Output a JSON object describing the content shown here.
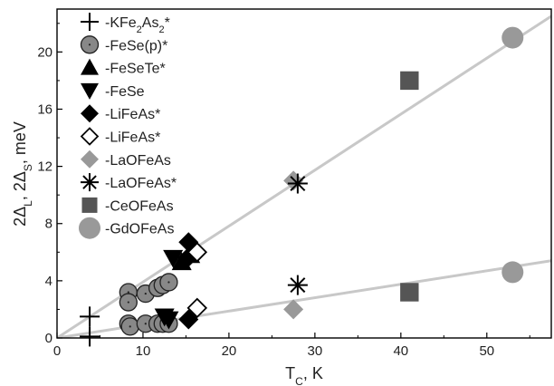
{
  "chart_data": {
    "type": "scatter",
    "xlabel": "T_C, K",
    "ylabel": "2Δ_L, 2Δ_S, meV",
    "xlim": [
      0,
      57.5
    ],
    "ylim": [
      0,
      23
    ],
    "xticks": [
      0,
      10,
      20,
      30,
      40,
      50
    ],
    "yticks": [
      0,
      4,
      8,
      12,
      16,
      20
    ],
    "grid": false,
    "legend_position": "top-left",
    "colors": {
      "fit_line": "#c8c8c8",
      "dark_gray": "#555555",
      "mid_gray": "#999999",
      "black": "#000000"
    },
    "fit_lines": [
      {
        "x": [
          0,
          57.5
        ],
        "y": [
          0,
          22.5
        ]
      },
      {
        "x": [
          0,
          57.5
        ],
        "y": [
          0,
          5.4
        ]
      }
    ],
    "series": [
      {
        "name": "-KFe2As2*",
        "legend": [
          "-KFe",
          "2",
          "As",
          "2",
          "*"
        ],
        "marker": "plus",
        "color": "#000000",
        "points": [
          [
            3.8,
            1.5
          ],
          [
            3.8,
            0.1
          ]
        ]
      },
      {
        "name": "-FeSe(p)*",
        "marker": "circle-dot",
        "color": "#888888",
        "points": [
          [
            8.3,
            3.2
          ],
          [
            8.3,
            2.5
          ],
          [
            10.3,
            3.1
          ],
          [
            11.7,
            3.5
          ],
          [
            12.3,
            3.7
          ],
          [
            13.0,
            3.9
          ],
          [
            8.3,
            1.0
          ],
          [
            8.5,
            0.8
          ],
          [
            10.3,
            1.0
          ],
          [
            11.7,
            1.0
          ],
          [
            12.3,
            1.0
          ],
          [
            13.0,
            1.0
          ]
        ]
      },
      {
        "name": "-FeSeTe*",
        "marker": "triangle-up",
        "color": "#000000",
        "points": [
          [
            14.5,
            5.3
          ],
          [
            15.5,
            5.8
          ]
        ]
      },
      {
        "name": "-FeSe",
        "marker": "triangle-down",
        "color": "#000000",
        "points": [
          [
            13.5,
            5.6
          ],
          [
            12.5,
            1.5
          ],
          [
            13.0,
            1.3
          ]
        ]
      },
      {
        "name": "-LiFeAs*",
        "marker": "diamond",
        "color": "#000000",
        "points": [
          [
            15.3,
            6.7
          ],
          [
            15.2,
            5.6
          ],
          [
            15.3,
            1.3
          ]
        ]
      },
      {
        "name": "-LiFeAs*",
        "marker": "diamond-open",
        "color": "#000000",
        "points": [
          [
            16.3,
            6.0
          ],
          [
            16.3,
            2.1
          ]
        ]
      },
      {
        "name": "-LaOFeAs",
        "marker": "diamond",
        "color": "#999999",
        "points": [
          [
            27.5,
            11.0
          ],
          [
            27.5,
            2.0
          ]
        ]
      },
      {
        "name": "-LaOFeAs*",
        "marker": "asterisk",
        "color": "#000000",
        "points": [
          [
            28.0,
            10.8
          ],
          [
            28.0,
            3.7
          ]
        ]
      },
      {
        "name": "-CeOFeAs",
        "marker": "square",
        "color": "#555555",
        "points": [
          [
            41.0,
            18.0
          ],
          [
            41.0,
            3.2
          ]
        ]
      },
      {
        "name": "-GdOFeAs",
        "marker": "circle",
        "color": "#999999",
        "points": [
          [
            53.0,
            21.0
          ],
          [
            53.0,
            4.6
          ]
        ]
      }
    ]
  }
}
